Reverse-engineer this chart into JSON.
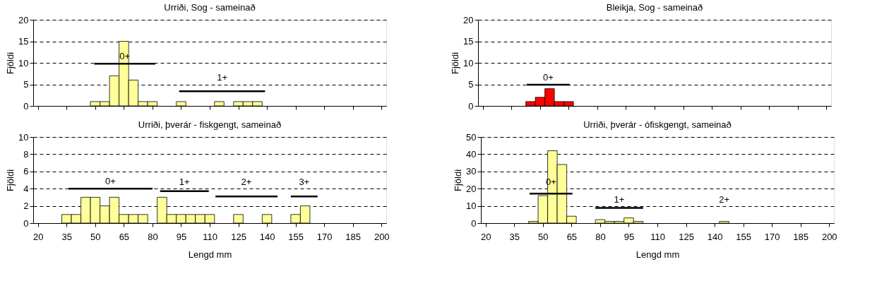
{
  "chart_data": [
    {
      "type": "histogram",
      "title": "Urriði, Sog - sameinað",
      "ylabel": "Fjöldi",
      "xlim": [
        17.5,
        202.5
      ],
      "xticks": [
        20,
        35,
        50,
        65,
        80,
        95,
        110,
        125,
        140,
        155,
        170,
        185,
        200
      ],
      "ylim": [
        0,
        20
      ],
      "yticks": [
        0,
        5,
        10,
        15,
        20
      ],
      "grid": "y",
      "tick_labels": "y",
      "bins": [
        17.5,
        22.5,
        27.5,
        32.5,
        37.5,
        42.5,
        47.5,
        52.5,
        57.5,
        62.5,
        67.5,
        72.5,
        77.5,
        82.5,
        87.5,
        92.5,
        97.5,
        102.5,
        107.5,
        112.5,
        117.5,
        122.5,
        127.5,
        132.5,
        137.5,
        142.5,
        147.5,
        152.5,
        157.5,
        162.5,
        167.5,
        172.5,
        177.5,
        182.5,
        187.5,
        192.5,
        197.5,
        202.5
      ],
      "series": [
        {
          "color": "#ffff99",
          "values": [
            0,
            0,
            0,
            0,
            0,
            0,
            1,
            1,
            7,
            15,
            6,
            1,
            1,
            0,
            0,
            1,
            0,
            0,
            0,
            1,
            0,
            1,
            1,
            1,
            0,
            0,
            0,
            0,
            0,
            0,
            0,
            0,
            0,
            0,
            0,
            0,
            0
          ]
        },
        {
          "type": "line",
          "name": "0+",
          "color": "#000000",
          "x": [
            49.5,
            81.5
          ],
          "values": [
            9.8,
            9.8
          ]
        },
        {
          "type": "line",
          "name": "1+",
          "color": "#000000",
          "x": [
            94,
            139
          ],
          "values": [
            3.4,
            3.4
          ]
        }
      ]
    },
    {
      "type": "histogram",
      "title": "Bleikja, Sog - sameinað",
      "ylabel": "Fjöldi",
      "xlim": [
        17.5,
        202.5
      ],
      "xticks": [
        20,
        35,
        50,
        65,
        80,
        95,
        110,
        125,
        140,
        155,
        170,
        185,
        200
      ],
      "ylim": [
        0,
        20
      ],
      "yticks": [
        0,
        5,
        10,
        15,
        20
      ],
      "grid": "y",
      "tick_labels": "y",
      "bins": [
        17.5,
        22.5,
        27.5,
        32.5,
        37.5,
        42.5,
        47.5,
        52.5,
        57.5,
        62.5,
        67.5,
        72.5,
        77.5,
        82.5,
        87.5,
        92.5,
        97.5,
        102.5,
        107.5,
        112.5,
        117.5,
        122.5,
        127.5,
        132.5,
        137.5,
        142.5,
        147.5,
        152.5,
        157.5,
        162.5,
        167.5,
        172.5,
        177.5,
        182.5,
        187.5,
        192.5,
        197.5,
        202.5
      ],
      "series": [
        {
          "color": "#ff0000",
          "values": [
            0,
            0,
            0,
            0,
            0,
            1,
            2,
            4,
            1,
            1,
            0,
            0,
            0,
            0,
            0,
            0,
            0,
            0,
            0,
            0,
            0,
            0,
            0,
            0,
            0,
            0,
            0,
            0,
            0,
            0,
            0,
            0,
            0,
            0,
            0,
            0,
            0
          ]
        },
        {
          "type": "line",
          "name": "0+",
          "color": "#000000",
          "x": [
            43,
            65.5
          ],
          "values": [
            4.9,
            4.9
          ]
        }
      ]
    },
    {
      "type": "histogram",
      "title": "Urriði, þverár - fiskgengt, sameinað",
      "xlabel": "Lengd mm",
      "ylabel": "Fjöldi",
      "xlim": [
        17.5,
        202.5
      ],
      "xticks": [
        20,
        35,
        50,
        65,
        80,
        95,
        110,
        125,
        140,
        155,
        170,
        185,
        200
      ],
      "ylim": [
        0,
        10
      ],
      "yticks": [
        0,
        2,
        4,
        6,
        8,
        10
      ],
      "grid": "y",
      "bins": [
        17.5,
        22.5,
        27.5,
        32.5,
        37.5,
        42.5,
        47.5,
        52.5,
        57.5,
        62.5,
        67.5,
        72.5,
        77.5,
        82.5,
        87.5,
        92.5,
        97.5,
        102.5,
        107.5,
        112.5,
        117.5,
        122.5,
        127.5,
        132.5,
        137.5,
        142.5,
        147.5,
        152.5,
        157.5,
        162.5,
        167.5,
        172.5,
        177.5,
        182.5,
        187.5,
        192.5,
        197.5,
        202.5
      ],
      "series": [
        {
          "color": "#ffff99",
          "values": [
            0,
            0,
            0,
            1,
            1,
            3,
            3,
            2,
            3,
            1,
            1,
            1,
            0,
            3,
            1,
            1,
            1,
            1,
            1,
            0,
            0,
            1,
            0,
            0,
            1,
            0,
            0,
            1,
            2,
            0,
            0,
            0,
            0,
            0,
            0,
            0,
            0
          ]
        },
        {
          "type": "line",
          "name": "0+",
          "color": "#000000",
          "x": [
            36,
            80
          ],
          "values": [
            4.0,
            4.0
          ]
        },
        {
          "type": "line",
          "name": "1+",
          "color": "#000000",
          "x": [
            84,
            109.5
          ],
          "values": [
            3.7,
            3.7
          ]
        },
        {
          "type": "line",
          "name": "2+",
          "color": "#000000",
          "x": [
            113,
            145.5
          ],
          "values": [
            3.1,
            3.1
          ]
        },
        {
          "type": "line",
          "name": "3+",
          "color": "#000000",
          "x": [
            152.5,
            166.5
          ],
          "values": [
            3.1,
            3.1
          ]
        }
      ]
    },
    {
      "type": "histogram",
      "title": "Urriði, þverár - ófiskgengt, sameinað",
      "xlabel": "Lengd mm",
      "ylabel": "Fjöldi",
      "xlim": [
        17.5,
        202.5
      ],
      "xticks": [
        20,
        35,
        50,
        65,
        80,
        95,
        110,
        125,
        140,
        155,
        170,
        185,
        200
      ],
      "ylim": [
        0,
        50
      ],
      "yticks": [
        0,
        10,
        20,
        30,
        40,
        50
      ],
      "grid": "y",
      "bins": [
        17.5,
        22.5,
        27.5,
        32.5,
        37.5,
        42.5,
        47.5,
        52.5,
        57.5,
        62.5,
        67.5,
        72.5,
        77.5,
        82.5,
        87.5,
        92.5,
        97.5,
        102.5,
        107.5,
        112.5,
        117.5,
        122.5,
        127.5,
        132.5,
        137.5,
        142.5,
        147.5,
        152.5,
        157.5,
        162.5,
        167.5,
        172.5,
        177.5,
        182.5,
        187.5,
        192.5,
        197.5,
        202.5
      ],
      "series": [
        {
          "color": "#ffff99",
          "values": [
            0,
            0,
            0,
            0,
            0,
            1,
            16,
            42,
            34,
            4,
            0,
            0,
            2,
            1,
            1,
            3,
            1,
            0,
            0,
            0,
            0,
            0,
            0,
            0,
            0,
            1,
            0,
            0,
            0,
            0,
            0,
            0,
            0,
            0,
            0,
            0,
            0
          ]
        },
        {
          "type": "line",
          "name": "0+",
          "color": "#000000",
          "x": [
            43,
            65.5
          ],
          "values": [
            17.1,
            17.1
          ]
        },
        {
          "type": "line",
          "name": "1+",
          "color": "#000000",
          "x": [
            77.5,
            102.5
          ],
          "values": [
            8.8,
            8.8
          ]
        }
      ],
      "annotations": [
        {
          "text": "2+",
          "x": 145,
          "y": 1
        }
      ]
    }
  ]
}
